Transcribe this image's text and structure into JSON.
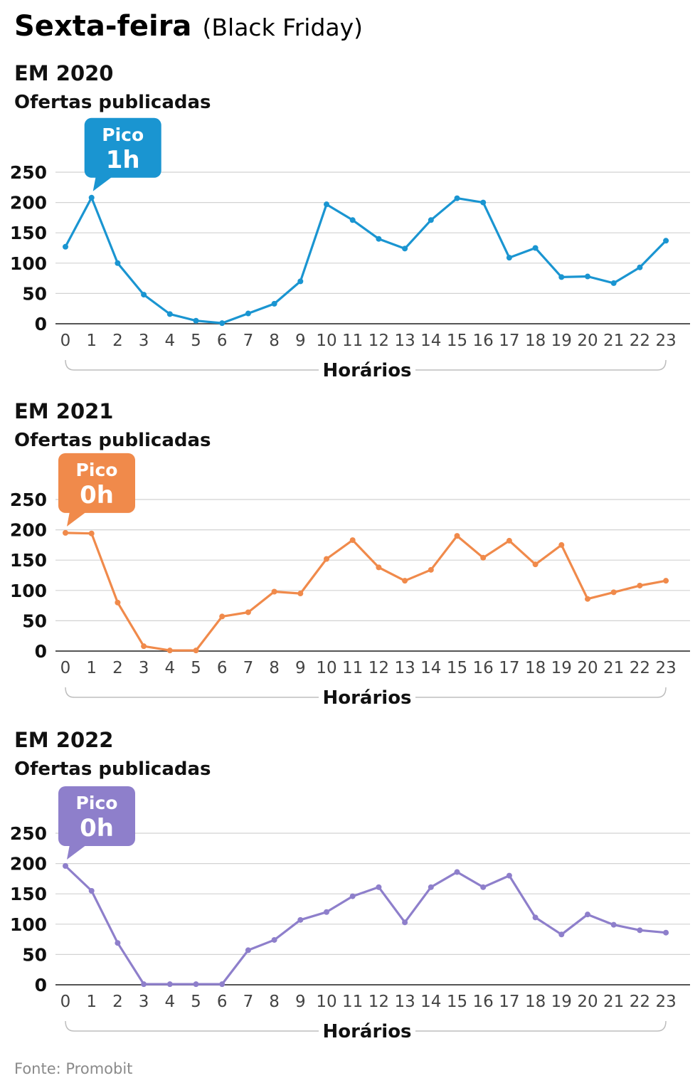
{
  "title": "Sexta-feira",
  "subtitle": "(Black Friday)",
  "source": "Fonte: Promobit",
  "chart_data": [
    {
      "type": "line",
      "heading": "EM 2020",
      "ylabel": "Ofertas publicadas",
      "xlabel": "Horários",
      "peak_label": "Pico",
      "peak_value": "1h",
      "peak_index": 1,
      "color": "#1a95d1",
      "x": [
        "0",
        "1",
        "2",
        "3",
        "4",
        "5",
        "6",
        "7",
        "8",
        "9",
        "10",
        "11",
        "12",
        "13",
        "14",
        "15",
        "16",
        "17",
        "18",
        "19",
        "20",
        "21",
        "22",
        "23"
      ],
      "values": [
        127,
        208,
        100,
        48,
        16,
        5,
        1,
        17,
        33,
        70,
        197,
        171,
        140,
        124,
        171,
        207,
        200,
        109,
        125,
        77,
        78,
        67,
        93,
        137
      ],
      "ylim": [
        0,
        250
      ],
      "yticks": [
        0,
        50,
        100,
        150,
        200,
        250
      ]
    },
    {
      "type": "line",
      "heading": "EM 2021",
      "ylabel": "Ofertas publicadas",
      "xlabel": "Horários",
      "peak_label": "Pico",
      "peak_value": "0h",
      "peak_index": 0,
      "color": "#f08a4b",
      "x": [
        "0",
        "1",
        "2",
        "3",
        "4",
        "5",
        "6",
        "7",
        "8",
        "9",
        "10",
        "11",
        "12",
        "13",
        "14",
        "15",
        "16",
        "17",
        "18",
        "19",
        "20",
        "21",
        "22",
        "23"
      ],
      "values": [
        195,
        194,
        80,
        8,
        1,
        1,
        57,
        64,
        98,
        95,
        152,
        183,
        138,
        116,
        134,
        190,
        154,
        182,
        143,
        175,
        86,
        97,
        108,
        116
      ],
      "ylim": [
        0,
        250
      ],
      "yticks": [
        0,
        50,
        100,
        150,
        200,
        250
      ]
    },
    {
      "type": "line",
      "heading": "EM 2022",
      "ylabel": "Ofertas publicadas",
      "xlabel": "Horários",
      "peak_label": "Pico",
      "peak_value": "0h",
      "peak_index": 0,
      "color": "#8e7fcb",
      "x": [
        "0",
        "1",
        "2",
        "3",
        "4",
        "5",
        "6",
        "7",
        "8",
        "9",
        "10",
        "11",
        "12",
        "13",
        "14",
        "15",
        "16",
        "17",
        "18",
        "19",
        "20",
        "21",
        "22",
        "23"
      ],
      "values": [
        196,
        155,
        69,
        1,
        1,
        1,
        1,
        57,
        74,
        107,
        120,
        146,
        161,
        103,
        161,
        186,
        161,
        180,
        111,
        83,
        116,
        99,
        90,
        86
      ],
      "ylim": [
        0,
        250
      ],
      "yticks": [
        0,
        50,
        100,
        150,
        200,
        250
      ]
    }
  ]
}
